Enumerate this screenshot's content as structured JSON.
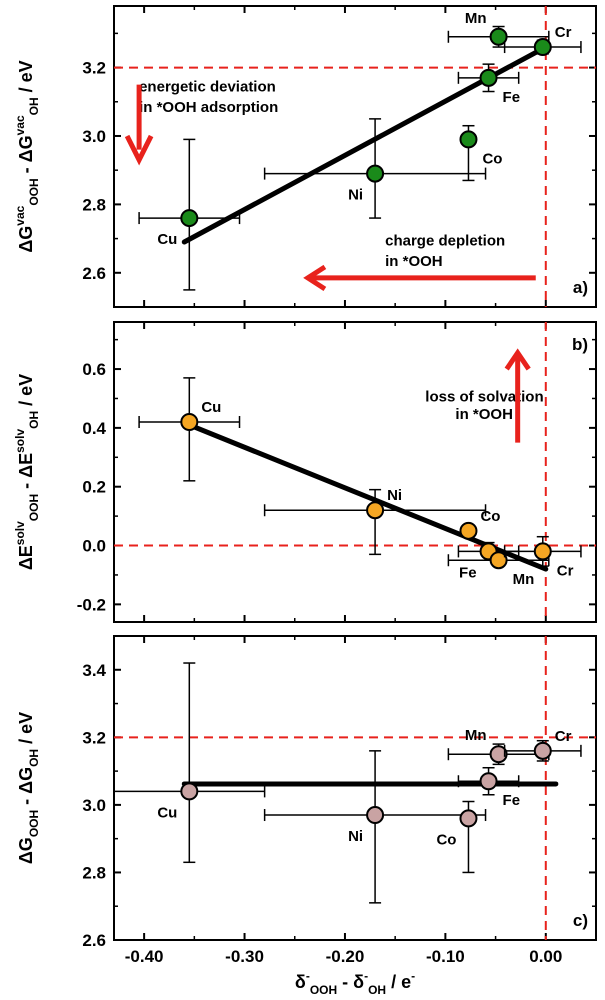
{
  "colors": {
    "panel_a_marker": "#1a8a1a",
    "panel_b_marker": "#f5a623",
    "panel_c_marker": "#c9a3a3",
    "reference": "#e8221c",
    "fit": "#000000"
  },
  "x_axis": {
    "label_main": "δ",
    "label_sup": "-",
    "label_sub1": "OOH",
    "label_minus": " - δ",
    "label_sup2": "-",
    "label_sub2": "OH",
    "label_unit": "  /  e",
    "label_unit_sup": "-",
    "xlim": [
      -0.43,
      0.05
    ],
    "ticks": [
      -0.4,
      -0.3,
      -0.2,
      -0.1,
      0.0
    ],
    "tick_labels": [
      "-0.40",
      "-0.30",
      "-0.20",
      "-0.10",
      "0.00"
    ]
  },
  "chart_data": [
    {
      "type": "scatter",
      "panel_label": "a)",
      "ylabel": {
        "main": "ΔG",
        "sup1": "vac",
        "sub1": "OOH",
        "minus": " - ΔG",
        "sup2": "vac",
        "sub2": "OH",
        "unit": "  /  eV"
      },
      "ylim": [
        2.5,
        3.38
      ],
      "yticks": [
        2.6,
        2.8,
        3.0,
        3.2
      ],
      "ytick_labels": [
        "2.6",
        "2.8",
        "3.0",
        "3.2"
      ],
      "reference_h": 3.2,
      "reference_v": 0.0,
      "fit": {
        "x": [
          -0.36,
          0.0
        ],
        "y": [
          2.69,
          3.26
        ]
      },
      "points": [
        {
          "label": "Cu",
          "x": -0.355,
          "y": 2.76,
          "xerr": 0.05,
          "yerr_lo": 0.21,
          "yerr_hi": 0.23,
          "label_side": "bl"
        },
        {
          "label": "Ni",
          "x": -0.17,
          "y": 2.89,
          "xerr": 0.11,
          "yerr_lo": 0.13,
          "yerr_hi": 0.16,
          "label_side": "bl"
        },
        {
          "label": "Co",
          "x": -0.077,
          "y": 2.99,
          "xerr": 0.0,
          "yerr_lo": 0.12,
          "yerr_hi": 0.04,
          "label_side": "br"
        },
        {
          "label": "Fe",
          "x": -0.057,
          "y": 3.17,
          "xerr": 0.03,
          "yerr_lo": 0.04,
          "yerr_hi": 0.04,
          "label_side": "br"
        },
        {
          "label": "Mn",
          "x": -0.047,
          "y": 3.29,
          "xerr": 0.05,
          "yerr_lo": 0.03,
          "yerr_hi": 0.03,
          "label_side": "tl"
        },
        {
          "label": "Cr",
          "x": -0.003,
          "y": 3.26,
          "xerr": 0.038,
          "yerr_lo": 0.02,
          "yerr_hi": 0.02,
          "label_side": "tr"
        }
      ],
      "annotations": [
        {
          "text": "energetic deviation",
          "x": -0.405,
          "y": 3.13
        },
        {
          "text": "in *OOH adsorption",
          "x": -0.405,
          "y": 3.07
        },
        {
          "text": "charge depletion",
          "x": -0.16,
          "y": 2.68
        },
        {
          "text": "in *OOH",
          "x": -0.16,
          "y": 2.62
        }
      ]
    },
    {
      "type": "scatter",
      "panel_label": "b)",
      "ylabel": {
        "main": "ΔE",
        "sup1": "solv",
        "sub1": "OOH",
        "minus": " - ΔE",
        "sup2": "solv",
        "sub2": "OH",
        "unit": "  /  eV"
      },
      "ylim": [
        -0.26,
        0.76
      ],
      "yticks": [
        -0.2,
        0.0,
        0.2,
        0.4,
        0.6
      ],
      "ytick_labels": [
        "-0.2",
        "0.0",
        "0.2",
        "0.4",
        "0.6"
      ],
      "reference_h": 0.0,
      "reference_v": 0.0,
      "fit": {
        "x": [
          -0.355,
          0.0
        ],
        "y": [
          0.41,
          -0.08
        ]
      },
      "points": [
        {
          "label": "Cu",
          "x": -0.355,
          "y": 0.42,
          "xerr": 0.05,
          "yerr_lo": 0.2,
          "yerr_hi": 0.15,
          "label_side": "tr"
        },
        {
          "label": "Ni",
          "x": -0.17,
          "y": 0.12,
          "xerr": 0.11,
          "yerr_lo": 0.15,
          "yerr_hi": 0.07,
          "label_side": "tr"
        },
        {
          "label": "Co",
          "x": -0.077,
          "y": 0.05,
          "xerr": 0.0,
          "yerr_lo": 0.0,
          "yerr_hi": 0.0,
          "label_side": "tr"
        },
        {
          "label": "Fe",
          "x": -0.057,
          "y": -0.02,
          "xerr": 0.03,
          "yerr_lo": 0.03,
          "yerr_hi": 0.03,
          "label_side": "bl"
        },
        {
          "label": "Mn",
          "x": -0.047,
          "y": -0.05,
          "xerr": 0.05,
          "yerr_lo": 0.0,
          "yerr_hi": 0.0,
          "label_side": "br"
        },
        {
          "label": "Cr",
          "x": -0.003,
          "y": -0.02,
          "xerr": 0.038,
          "yerr_lo": 0.05,
          "yerr_hi": 0.05,
          "label_side": "br"
        }
      ],
      "annotations": [
        {
          "text": "loss of solvation",
          "x": -0.12,
          "y": 0.49
        },
        {
          "text": "in *OOH",
          "x": -0.09,
          "y": 0.43
        }
      ]
    },
    {
      "type": "scatter",
      "panel_label": "c)",
      "ylabel": {
        "main": "ΔG",
        "sup1": "",
        "sub1": "OOH",
        "minus": " - ΔG",
        "sup2": "",
        "sub2": "OH",
        "unit": "  /  eV"
      },
      "ylim": [
        2.6,
        3.5
      ],
      "yticks": [
        2.6,
        2.8,
        3.0,
        3.2,
        3.4
      ],
      "ytick_labels": [
        "2.6",
        "2.8",
        "3.0",
        "3.2",
        "3.4"
      ],
      "reference_h": 3.2,
      "reference_v": 0.0,
      "fit": {
        "x": [
          -0.36,
          0.01
        ],
        "y": [
          3.062,
          3.062
        ]
      },
      "points": [
        {
          "label": "Cu",
          "x": -0.355,
          "y": 3.04,
          "xerr": 0.075,
          "yerr_lo": 0.21,
          "yerr_hi": 0.38,
          "label_side": "bl"
        },
        {
          "label": "Ni",
          "x": -0.17,
          "y": 2.97,
          "xerr": 0.11,
          "yerr_lo": 0.26,
          "yerr_hi": 0.19,
          "label_side": "bl"
        },
        {
          "label": "Co",
          "x": -0.077,
          "y": 2.96,
          "xerr": 0.0,
          "yerr_lo": 0.16,
          "yerr_hi": 0.05,
          "label_side": "bl"
        },
        {
          "label": "Fe",
          "x": -0.057,
          "y": 3.07,
          "xerr": 0.03,
          "yerr_lo": 0.04,
          "yerr_hi": 0.04,
          "label_side": "br"
        },
        {
          "label": "Mn",
          "x": -0.047,
          "y": 3.15,
          "xerr": 0.05,
          "yerr_lo": 0.03,
          "yerr_hi": 0.03,
          "label_side": "tl"
        },
        {
          "label": "Cr",
          "x": -0.003,
          "y": 3.16,
          "xerr": 0.038,
          "yerr_lo": 0.03,
          "yerr_hi": 0.03,
          "label_side": "tr"
        }
      ],
      "annotations": []
    }
  ]
}
